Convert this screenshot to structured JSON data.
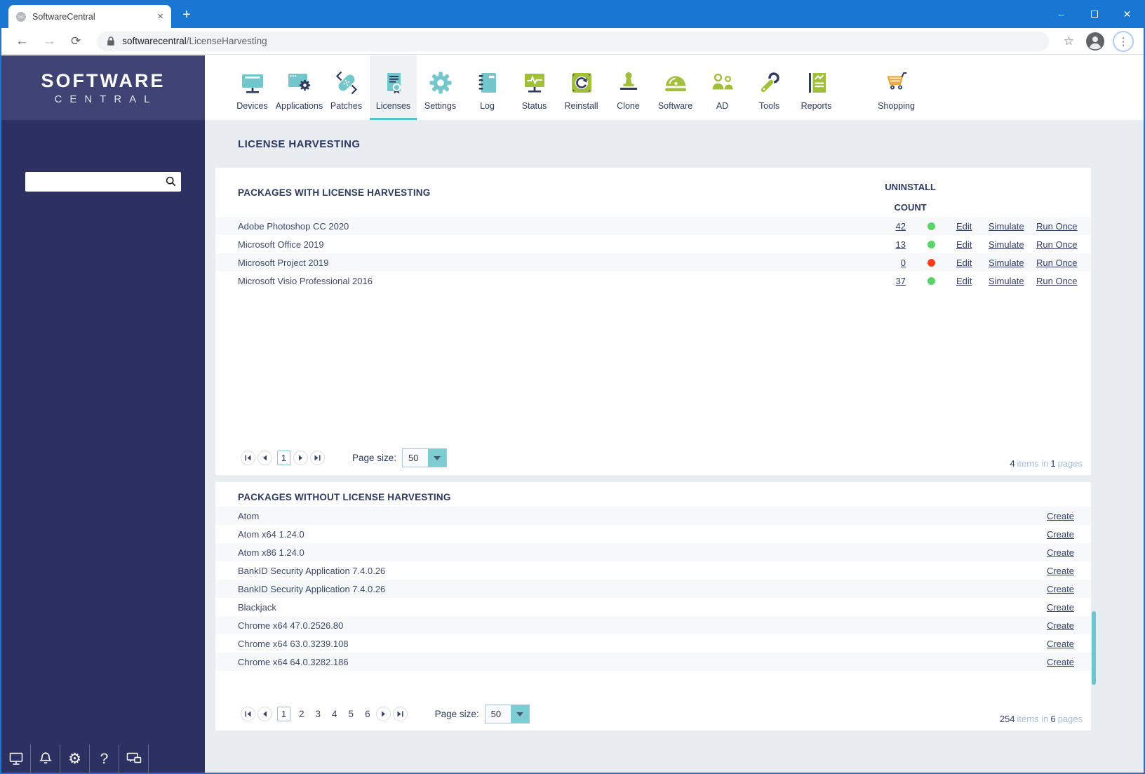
{
  "window_controls": {
    "minimize": "–",
    "close": "✕"
  },
  "browser": {
    "tab": {
      "title": "SoftwareCentral",
      "close_glyph": "×"
    },
    "new_tab_button": "+",
    "icons": {
      "back": "←",
      "forward": "→",
      "reload": "⟳",
      "star": "☆",
      "menu": "⋮"
    },
    "address": {
      "host": "softwarecentral",
      "path": "/LicenseHarvesting"
    }
  },
  "sidebar": {
    "logo_primary": "SOFTWARE",
    "logo_secondary": "CENTRAL",
    "search_value": "",
    "footer_gear_glyph": "⚙",
    "footer_help_glyph": "?"
  },
  "nav": {
    "active": "Licenses",
    "items": [
      {
        "label": "Devices"
      },
      {
        "label": "Applications"
      },
      {
        "label": "Patches"
      },
      {
        "label": "Licenses"
      },
      {
        "label": "Settings"
      },
      {
        "label": "Log"
      },
      {
        "label": "Status"
      },
      {
        "label": "Reinstall"
      },
      {
        "label": "Clone"
      },
      {
        "label": "Software"
      },
      {
        "label": "AD"
      },
      {
        "label": "Tools"
      },
      {
        "label": "Reports"
      },
      {
        "label": "Shopping"
      }
    ]
  },
  "page": {
    "title": "LICENSE HARVESTING"
  },
  "packages_with": {
    "title": "PACKAGES WITH LICENSE HARVESTING",
    "count_header_line1": "UNINSTALL",
    "count_header_line2": "COUNT",
    "actions": [
      "Edit",
      "Simulate",
      "Run Once"
    ],
    "rows": [
      {
        "name": "Adobe Photoshop CC 2020",
        "count": "42",
        "status": "green"
      },
      {
        "name": "Microsoft Office 2019",
        "count": "13",
        "status": "green"
      },
      {
        "name": "Microsoft Project 2019",
        "count": "0",
        "status": "red"
      },
      {
        "name": "Microsoft Visio Professional 2016",
        "count": "37",
        "status": "green"
      }
    ],
    "pager": {
      "current": "1",
      "page_size_label": "Page size:",
      "page_size": "50",
      "summary": {
        "items": "4",
        "items_text": "items in",
        "pages": "1",
        "pages_text": "pages"
      }
    }
  },
  "packages_without": {
    "title": "PACKAGES WITHOUT LICENSE HARVESTING",
    "action": "Create",
    "rows": [
      "Atom",
      "Atom x64 1.24.0",
      "Atom x86 1.24.0",
      "BankID Security Application 7.4.0.26",
      "BankID Security Application 7.4.0.26",
      "Blackjack",
      "Chrome x64 47.0.2526.80",
      "Chrome x64 63.0.3239.108",
      "Chrome x64 64.0.3282.186"
    ],
    "pager": {
      "current": "1",
      "pages": [
        "2",
        "3",
        "4",
        "5",
        "6"
      ],
      "page_size_label": "Page size:",
      "page_size": "50",
      "summary": {
        "items": "254",
        "items_text": "items in",
        "pages": "6",
        "pages_text": "pages"
      }
    }
  },
  "colors": {
    "titlebar_blue": "#1976d2",
    "accent_teal": "#73c6cb",
    "accent_green": "#a1bf3a",
    "accent_orange": "#f2a130",
    "status_green": "#58d468",
    "status_red": "#ff3d1c",
    "sidebar_navy": "#2c3162"
  }
}
